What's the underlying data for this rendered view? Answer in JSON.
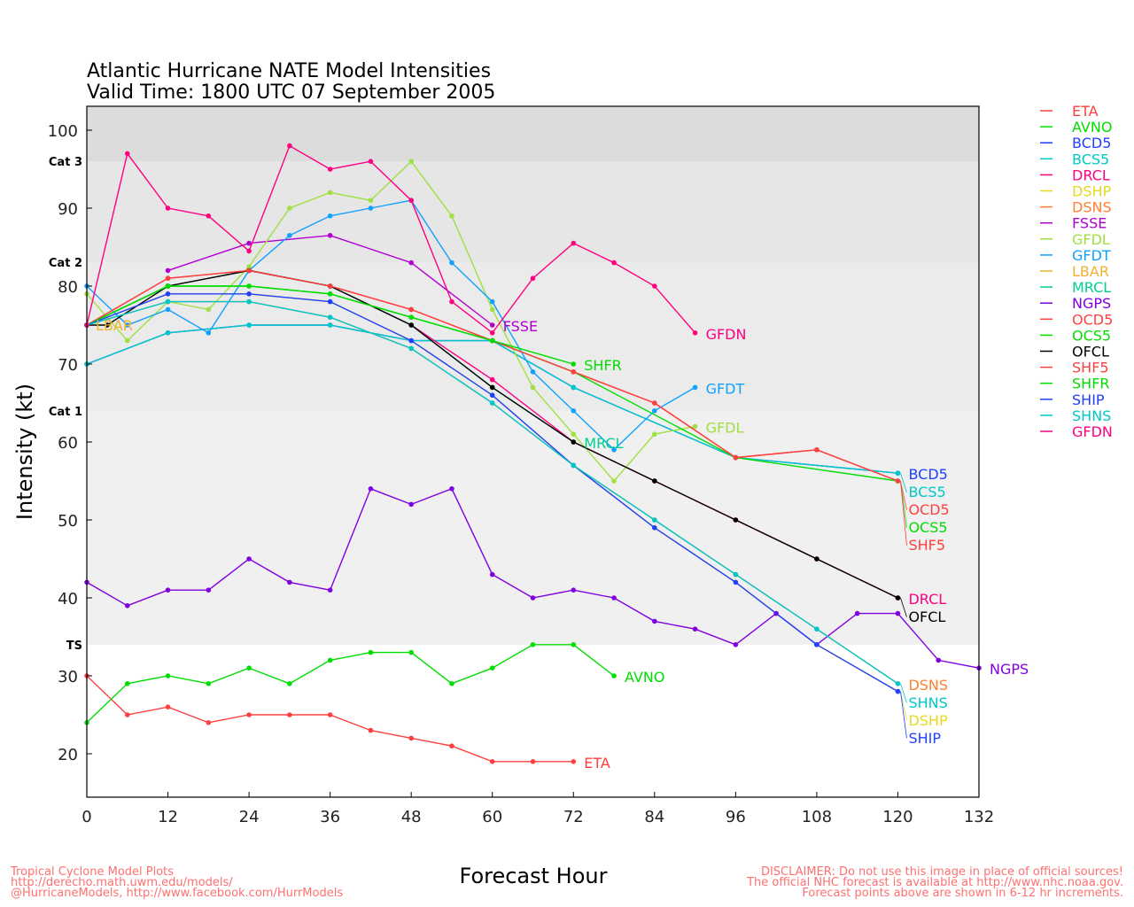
{
  "chart_data": {
    "type": "line",
    "title": "Atlantic Hurricane NATE Model Intensities",
    "subtitle": "Valid Time: 1800 UTC 07 September 2005",
    "xlabel": "Forecast Hour",
    "ylabel": "Intensity (kt)",
    "xlim": [
      0,
      132
    ],
    "ylim": [
      14.4,
      103.1
    ],
    "xticks": [
      0,
      12,
      24,
      36,
      48,
      60,
      72,
      84,
      96,
      108,
      120,
      132
    ],
    "yticks": [
      20,
      30,
      40,
      50,
      60,
      70,
      80,
      90,
      100
    ],
    "legend_position": "right",
    "bands": [
      {
        "label": "Cat 3",
        "from": 96,
        "to": 103.1,
        "color": "#dcdcdc"
      },
      {
        "label": "Cat 2",
        "from": 83,
        "to": 96,
        "color": "#e6e6e6"
      },
      {
        "label": "Cat 1",
        "from": 64,
        "to": 83,
        "color": "#ebebeb"
      },
      {
        "label": "TS",
        "from": 34,
        "to": 64,
        "color": "#f0f0f0"
      }
    ],
    "series": [
      {
        "name": "ETA",
        "color": "#ff4040",
        "label": true,
        "points": [
          [
            0,
            30
          ],
          [
            6,
            25
          ],
          [
            12,
            26
          ],
          [
            18,
            24
          ],
          [
            24,
            25
          ],
          [
            30,
            25
          ],
          [
            36,
            25
          ],
          [
            42,
            23
          ],
          [
            48,
            22
          ],
          [
            54,
            21
          ],
          [
            60,
            19
          ],
          [
            66,
            19
          ],
          [
            72,
            19
          ]
        ]
      },
      {
        "name": "AVNO",
        "color": "#00dd00",
        "label": true,
        "points": [
          [
            0,
            24
          ],
          [
            6,
            29
          ],
          [
            12,
            30
          ],
          [
            18,
            29
          ],
          [
            24,
            31
          ],
          [
            30,
            29
          ],
          [
            36,
            32
          ],
          [
            42,
            33
          ],
          [
            48,
            33
          ],
          [
            54,
            29
          ],
          [
            60,
            31
          ],
          [
            66,
            34
          ],
          [
            72,
            34
          ],
          [
            78,
            30
          ]
        ]
      },
      {
        "name": "BCD5",
        "color": "#2040ff",
        "label": true,
        "points": [
          [
            0,
            70
          ],
          [
            12,
            74
          ],
          [
            24,
            75
          ],
          [
            36,
            75
          ],
          [
            48,
            73
          ],
          [
            60,
            73
          ],
          [
            72,
            67
          ],
          [
            96,
            58
          ],
          [
            120,
            56
          ]
        ]
      },
      {
        "name": "BCS5",
        "color": "#00c8c8",
        "label": true,
        "points": [
          [
            0,
            70
          ],
          [
            12,
            74
          ],
          [
            24,
            75
          ],
          [
            36,
            75
          ],
          [
            48,
            73
          ],
          [
            60,
            73
          ],
          [
            72,
            67
          ],
          [
            96,
            58
          ],
          [
            120,
            56
          ]
        ]
      },
      {
        "name": "DRCL",
        "color": "#ff0080",
        "label": true,
        "points": [
          [
            0,
            75
          ],
          [
            12,
            80
          ],
          [
            24,
            82
          ],
          [
            36,
            80
          ],
          [
            48,
            75
          ],
          [
            60,
            68
          ],
          [
            72,
            60
          ],
          [
            84,
            55
          ],
          [
            96,
            50
          ],
          [
            108,
            45
          ],
          [
            120,
            40
          ]
        ]
      },
      {
        "name": "DSHP",
        "color": "#e8d820",
        "label": true,
        "points": [
          [
            0,
            75
          ],
          [
            12,
            79
          ],
          [
            24,
            79
          ],
          [
            36,
            78
          ],
          [
            48,
            73
          ],
          [
            60,
            66
          ],
          [
            72,
            57
          ],
          [
            84,
            49
          ],
          [
            96,
            42
          ],
          [
            108,
            34
          ],
          [
            120,
            28
          ]
        ]
      },
      {
        "name": "DSNS",
        "color": "#ff8030",
        "label": true,
        "points": [
          [
            0,
            75
          ],
          [
            12,
            78
          ],
          [
            24,
            78
          ],
          [
            36,
            76
          ],
          [
            48,
            72
          ],
          [
            60,
            65
          ],
          [
            72,
            57
          ],
          [
            84,
            50
          ],
          [
            96,
            43
          ],
          [
            108,
            36
          ],
          [
            120,
            29
          ]
        ]
      },
      {
        "name": "FSSE",
        "color": "#b000d0",
        "label": true,
        "points": [
          [
            12,
            82
          ],
          [
            24,
            85.5
          ],
          [
            36,
            86.5
          ],
          [
            48,
            83
          ],
          [
            60,
            75
          ]
        ]
      },
      {
        "name": "GFDL",
        "color": "#a0e040",
        "label": true,
        "points": [
          [
            0,
            79
          ],
          [
            6,
            73
          ],
          [
            12,
            78
          ],
          [
            18,
            77
          ],
          [
            24,
            82.5
          ],
          [
            30,
            90
          ],
          [
            36,
            92
          ],
          [
            42,
            91
          ],
          [
            48,
            96
          ],
          [
            54,
            89
          ],
          [
            60,
            77
          ],
          [
            66,
            67
          ],
          [
            72,
            61
          ],
          [
            78,
            55
          ],
          [
            84,
            61
          ],
          [
            90,
            62
          ]
        ]
      },
      {
        "name": "GFDT",
        "color": "#10a0ff",
        "label": true,
        "points": [
          [
            0,
            80
          ],
          [
            6,
            75
          ],
          [
            12,
            77
          ],
          [
            18,
            74
          ],
          [
            24,
            82
          ],
          [
            30,
            86.5
          ],
          [
            36,
            89
          ],
          [
            42,
            90
          ],
          [
            48,
            91
          ],
          [
            54,
            83
          ],
          [
            60,
            78
          ],
          [
            66,
            69
          ],
          [
            72,
            64
          ],
          [
            78,
            59
          ],
          [
            84,
            64
          ],
          [
            90,
            67
          ]
        ]
      },
      {
        "name": "LBAR",
        "color": "#f0b030",
        "label": true,
        "points": [
          [
            0,
            75
          ]
        ]
      },
      {
        "name": "MRCL",
        "color": "#00d090",
        "label": true,
        "points": [
          [
            0,
            75
          ],
          [
            12,
            80
          ],
          [
            24,
            82
          ],
          [
            36,
            80
          ],
          [
            48,
            75
          ],
          [
            60,
            67
          ],
          [
            72,
            60
          ]
        ]
      },
      {
        "name": "NGPS",
        "color": "#8000e0",
        "label": true,
        "points": [
          [
            0,
            42
          ],
          [
            6,
            39
          ],
          [
            12,
            41
          ],
          [
            18,
            41
          ],
          [
            24,
            45
          ],
          [
            30,
            42
          ],
          [
            36,
            41
          ],
          [
            42,
            54
          ],
          [
            48,
            52
          ],
          [
            54,
            54
          ],
          [
            60,
            43
          ],
          [
            66,
            40
          ],
          [
            72,
            41
          ],
          [
            78,
            40
          ],
          [
            84,
            37
          ],
          [
            90,
            36
          ],
          [
            96,
            34
          ],
          [
            102,
            38
          ],
          [
            108,
            34
          ],
          [
            114,
            38
          ],
          [
            120,
            38
          ],
          [
            126,
            32
          ],
          [
            132,
            31
          ]
        ]
      },
      {
        "name": "OCD5",
        "color": "#ff4040",
        "label": true,
        "points": [
          [
            0,
            75
          ],
          [
            12,
            81
          ],
          [
            24,
            82
          ],
          [
            36,
            80
          ],
          [
            48,
            77
          ],
          [
            60,
            73
          ],
          [
            72,
            69
          ],
          [
            84,
            65
          ],
          [
            96,
            58
          ],
          [
            108,
            59
          ],
          [
            120,
            55
          ]
        ]
      },
      {
        "name": "OCS5",
        "color": "#00dd00",
        "label": true,
        "points": [
          [
            0,
            75
          ],
          [
            12,
            80
          ],
          [
            24,
            80
          ],
          [
            36,
            79
          ],
          [
            48,
            76
          ],
          [
            60,
            73
          ],
          [
            72,
            69
          ],
          [
            96,
            58
          ],
          [
            120,
            55
          ]
        ]
      },
      {
        "name": "OFCL",
        "color": "#000000",
        "label": true,
        "points": [
          [
            0,
            75
          ],
          [
            3,
            75
          ],
          [
            12,
            80
          ],
          [
            24,
            82
          ],
          [
            36,
            80
          ],
          [
            48,
            75
          ],
          [
            60,
            67
          ],
          [
            72,
            60
          ],
          [
            84,
            55
          ],
          [
            96,
            50
          ],
          [
            108,
            45
          ],
          [
            120,
            40
          ]
        ]
      },
      {
        "name": "SHF5",
        "color": "#ff4040",
        "label": true,
        "points": [
          [
            0,
            75
          ],
          [
            12,
            81
          ],
          [
            24,
            82
          ],
          [
            36,
            80
          ],
          [
            48,
            77
          ],
          [
            60,
            73
          ],
          [
            72,
            69
          ],
          [
            84,
            65
          ],
          [
            96,
            58
          ],
          [
            108,
            59
          ],
          [
            120,
            55
          ]
        ]
      },
      {
        "name": "SHFR",
        "color": "#00dd00",
        "label": true,
        "points": [
          [
            0,
            75
          ],
          [
            12,
            80
          ],
          [
            24,
            80
          ],
          [
            36,
            79
          ],
          [
            48,
            76
          ],
          [
            60,
            73
          ],
          [
            72,
            70
          ]
        ]
      },
      {
        "name": "SHIP",
        "color": "#2040ff",
        "label": true,
        "points": [
          [
            0,
            75
          ],
          [
            12,
            79
          ],
          [
            24,
            79
          ],
          [
            36,
            78
          ],
          [
            48,
            73
          ],
          [
            60,
            66
          ],
          [
            72,
            57
          ],
          [
            84,
            49
          ],
          [
            96,
            42
          ],
          [
            108,
            34
          ],
          [
            120,
            28
          ]
        ]
      },
      {
        "name": "SHNS",
        "color": "#00c8c8",
        "label": true,
        "points": [
          [
            0,
            75
          ],
          [
            12,
            78
          ],
          [
            24,
            78
          ],
          [
            36,
            76
          ],
          [
            48,
            72
          ],
          [
            60,
            65
          ],
          [
            72,
            57
          ],
          [
            84,
            50
          ],
          [
            96,
            43
          ],
          [
            108,
            36
          ],
          [
            120,
            29
          ]
        ]
      },
      {
        "name": "GFDN",
        "color": "#ff0080",
        "label": true,
        "points": [
          [
            0,
            75
          ],
          [
            6,
            97
          ],
          [
            12,
            90
          ],
          [
            18,
            89
          ],
          [
            24,
            84.5
          ],
          [
            30,
            98
          ],
          [
            36,
            95
          ],
          [
            42,
            96
          ],
          [
            48,
            91
          ],
          [
            54,
            78
          ],
          [
            60,
            74
          ],
          [
            66,
            81
          ],
          [
            72,
            85.5
          ],
          [
            78,
            83
          ],
          [
            84,
            80
          ],
          [
            90,
            74
          ]
        ]
      }
    ]
  },
  "footer": {
    "left": [
      "Tropical Cyclone Model Plots",
      "http://derecho.math.uwm.edu/models/",
      "@HurricaneModels, http://www.facebook.com/HurrModels"
    ],
    "right": [
      "DISCLAIMER: Do not use this image in place of official sources!",
      "The official NHC forecast is available at http://www.nhc.noaa.gov.",
      "Forecast points above are shown in 6-12 hr increments."
    ]
  }
}
